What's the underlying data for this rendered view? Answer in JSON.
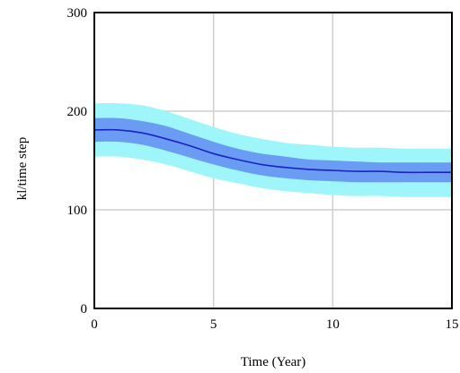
{
  "chart_data": {
    "type": "line",
    "title": "",
    "xlabel": "Time (Year)",
    "ylabel": "kl/time step",
    "xlim": [
      0,
      15
    ],
    "ylim": [
      0,
      300
    ],
    "x_ticks": [
      0,
      5,
      10,
      15
    ],
    "y_ticks": [
      0,
      100,
      200,
      300
    ],
    "grid": true,
    "x": [
      0,
      1,
      2,
      3,
      4,
      5,
      6,
      7,
      8,
      9,
      10,
      11,
      12,
      13,
      14,
      15
    ],
    "series": [
      {
        "role": "outer_upper",
        "values": [
          208,
          208,
          206,
          200,
          192,
          184,
          177,
          172,
          168,
          166,
          164,
          163,
          163,
          162,
          162,
          162
        ]
      },
      {
        "role": "inner_upper",
        "values": [
          193,
          193,
          190,
          185,
          177,
          169,
          162,
          157,
          154,
          151,
          150,
          149,
          148,
          148,
          148,
          148
        ]
      },
      {
        "role": "median",
        "values": [
          181,
          181,
          178,
          172,
          165,
          157,
          151,
          146,
          143,
          141,
          140,
          139,
          139,
          138,
          138,
          138
        ]
      },
      {
        "role": "inner_lower",
        "values": [
          169,
          169,
          166,
          160,
          153,
          146,
          140,
          135,
          132,
          130,
          129,
          128,
          128,
          128,
          128,
          128
        ]
      },
      {
        "role": "outer_lower",
        "values": [
          154,
          154,
          151,
          146,
          139,
          132,
          127,
          122,
          119,
          117,
          115,
          114,
          114,
          113,
          113,
          113
        ]
      }
    ],
    "colors": {
      "outer_band": "#9ef6fb",
      "inner_band": "#6b9cf4",
      "median_line": "#1a22c4",
      "grid": "#cfcfcf",
      "frame": "#000000"
    }
  }
}
